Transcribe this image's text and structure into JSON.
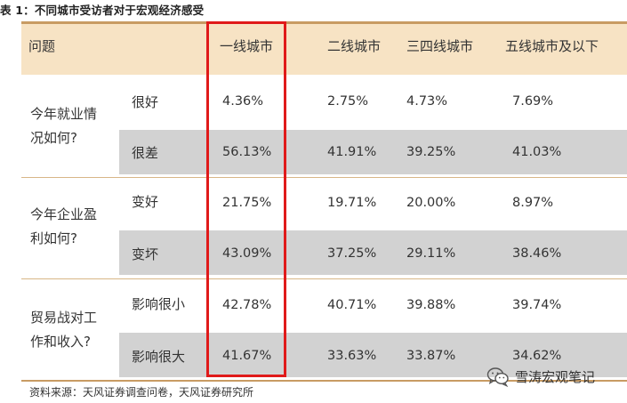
{
  "caption": "表 1：不同城市受访者对于宏观经济感受",
  "header": {
    "question": "问题",
    "columns": [
      "一线城市",
      "二线城市",
      "三四线城市",
      "五线城市及以下"
    ]
  },
  "groups": [
    {
      "question_lines": [
        "今年就业情",
        "况如何?"
      ],
      "rows": [
        {
          "label": "很好",
          "values": [
            "4.36%",
            "2.75%",
            "4.73%",
            "7.69%"
          ]
        },
        {
          "label": "很差",
          "values": [
            "56.13%",
            "41.91%",
            "39.25%",
            "41.03%"
          ]
        }
      ]
    },
    {
      "question_lines": [
        "今年企业盈",
        "利如何?"
      ],
      "rows": [
        {
          "label": "变好",
          "values": [
            "21.75%",
            "19.71%",
            "20.00%",
            "8.97%"
          ]
        },
        {
          "label": "变坏",
          "values": [
            "43.09%",
            "37.25%",
            "29.11%",
            "38.46%"
          ]
        }
      ]
    },
    {
      "question_lines": [
        "贸易战对工",
        "作和收入?"
      ],
      "rows": [
        {
          "label": "影响很小",
          "values": [
            "42.78%",
            "40.71%",
            "39.88%",
            "39.74%"
          ]
        },
        {
          "label": "影响很大",
          "values": [
            "41.67%",
            "33.63%",
            "33.87%",
            "34.62%"
          ]
        }
      ]
    }
  ],
  "source": "资料来源：天风证券调查问卷，天风证券研究所",
  "watermark": {
    "icon": "wechat-icon",
    "text": "雪涛宏观笔记"
  },
  "colors": {
    "header_bg": "#f7e3c4",
    "rule": "#c89b63",
    "row_shade": "#d2d2d2",
    "highlight": "#e01a1a"
  }
}
